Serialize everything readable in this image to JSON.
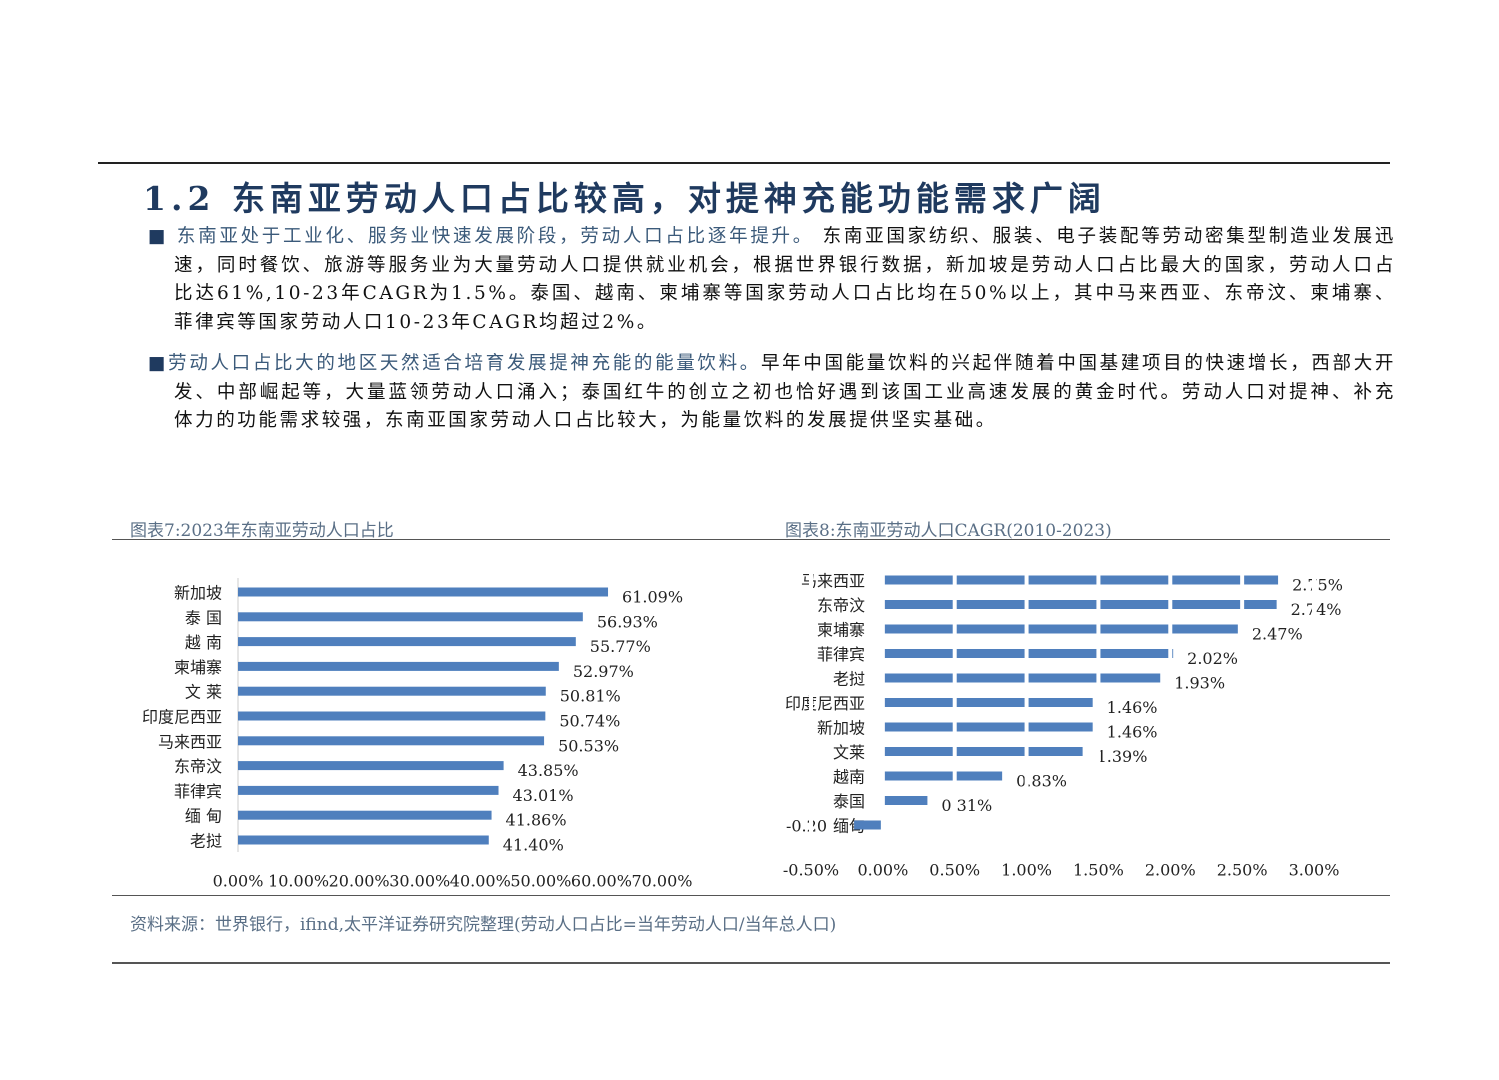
{
  "title": "1.2 东南亚劳动人口占比较高，对提神充能功能需求广阔",
  "paragraphs": [
    {
      "lead": "东南亚处于工业化、服务业快速发展阶段，劳动人口占比逐年提升。",
      "body": "东南亚国家纺织、服装、电子装配等劳动密集型制造业发展迅速，同时餐饮、旅游等服务业为大量劳动人口提供就业机会，根据世界银行数据，新加坡是劳动人口占比最大的国家，劳动人口占比达61%,10-23年CAGR为1.5%。泰国、越南、柬埔寨等国家劳动人口占比均在50%以上，其中马来西亚、东帝汶、柬埔寨、菲律宾等国家劳动人口10-23年CAGR均超过2%。"
    },
    {
      "lead": "劳动人口占比大的地区天然适合培育发展提神充能的能量饮料。",
      "body": "早年中国能量饮料的兴起伴随着中国基建项目的快速增长，西部大开发、中部崛起等，大量蓝领劳动人口涌入；泰国红牛的创立之初也恰好遇到该国工业高速发展的黄金时代。劳动人口对提神、补充体力的功能需求较强，东南亚国家劳动人口占比较大，为能量饮料的发展提供坚实基础。"
    }
  ],
  "chart_data": [
    {
      "type": "hbar",
      "title": "图表7:2023年东南亚劳动人口占比",
      "categories": [
        "新加坡",
        "泰 国",
        "越 南",
        "柬埔寨",
        "文 莱",
        "印度尼西亚",
        "马来西亚",
        "东帝汶",
        "菲律宾",
        "缅 甸",
        "老挝"
      ],
      "values": [
        61.09,
        56.93,
        55.77,
        52.97,
        50.81,
        50.74,
        50.53,
        43.85,
        43.01,
        41.86,
        41.4
      ],
      "value_labels": [
        "61.09%",
        "56.93%",
        "55.77%",
        "52.97%",
        "50.81%",
        "50.74%",
        "50.53%",
        "43.85%",
        "43.01%",
        "41.86%",
        "41.40%"
      ],
      "color": "#4f7fbd",
      "xlim": [
        0,
        70
      ],
      "xticks": [
        {
          "value": 0,
          "label": "0.00%"
        },
        {
          "value": 10,
          "label": "10.00%"
        },
        {
          "value": 20,
          "label": "20.00%"
        },
        {
          "value": 30,
          "label": "30.00%"
        },
        {
          "value": 40,
          "label": "40.00%"
        },
        {
          "value": 50,
          "label": "50.00%"
        },
        {
          "value": 60,
          "label": "60.00%"
        },
        {
          "value": 70,
          "label": "70.00%"
        }
      ],
      "grid": false
    },
    {
      "type": "hbar",
      "title": "图表8:东南亚劳动人口CAGR(2010-2023)",
      "categories": [
        "马来西亚",
        "东帝汶",
        "柬埔寨",
        "菲律宾",
        "老挝",
        "印度尼西亚",
        "新加坡",
        "文莱",
        "越南",
        "泰国",
        "缅甸"
      ],
      "values": [
        2.75,
        2.74,
        2.47,
        2.02,
        1.93,
        1.46,
        1.46,
        1.39,
        0.83,
        0.31,
        -0.2
      ],
      "value_labels": [
        "2.75%",
        "2.74%",
        "2.47%",
        "2.02%",
        "1.93%",
        "1.46%",
        "1.46%",
        "1.39%",
        "0.83%",
        "0.31%",
        "-0.20"
      ],
      "color": "#4f7fbd",
      "xlim": [
        -0.5,
        3
      ],
      "xticks": [
        {
          "value": -0.5,
          "label": "-0.50%"
        },
        {
          "value": 0,
          "label": "0.00%"
        },
        {
          "value": 0.5,
          "label": "0.50%"
        },
        {
          "value": 1,
          "label": "1.00%"
        },
        {
          "value": 1.5,
          "label": "1.50%"
        },
        {
          "value": 2,
          "label": "2.00%"
        },
        {
          "value": 2.5,
          "label": "2.50%"
        },
        {
          "value": 3,
          "label": "3.00%"
        }
      ],
      "grid": true
    }
  ],
  "source": "资料来源：世界银行，ifind,太平洋证券研究院整理(劳动人口占比=当年劳动人口/当年总人口)"
}
